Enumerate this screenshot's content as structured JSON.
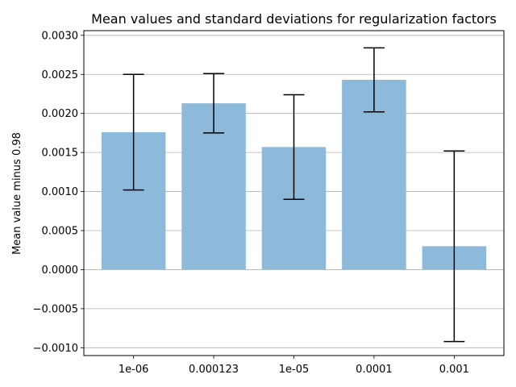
{
  "chart_data": {
    "type": "bar",
    "title": "Mean values and standard deviations for regularization factors",
    "xlabel": "",
    "ylabel": "Mean value minus 0.98",
    "categories": [
      "1e-06",
      "0.000123",
      "1e-05",
      "0.0001",
      "0.001"
    ],
    "values": [
      0.00176,
      0.00213,
      0.00157,
      0.00243,
      0.0003
    ],
    "errors": [
      0.00074,
      0.00038,
      0.00067,
      0.00041,
      0.00122
    ],
    "ylim": [
      -0.0011,
      0.00306
    ],
    "yticks": [
      -0.001,
      -0.0005,
      0.0,
      0.0005,
      0.001,
      0.0015,
      0.002,
      0.0025,
      0.003
    ],
    "ytick_labels": [
      "−0.0010",
      "−0.0005",
      "0.0000",
      "0.0005",
      "0.0010",
      "0.0015",
      "0.0020",
      "0.0025",
      "0.0030"
    ],
    "grid": "horizontal",
    "bar_color": "#8db9da",
    "grid_color": "#b0b0b0"
  }
}
